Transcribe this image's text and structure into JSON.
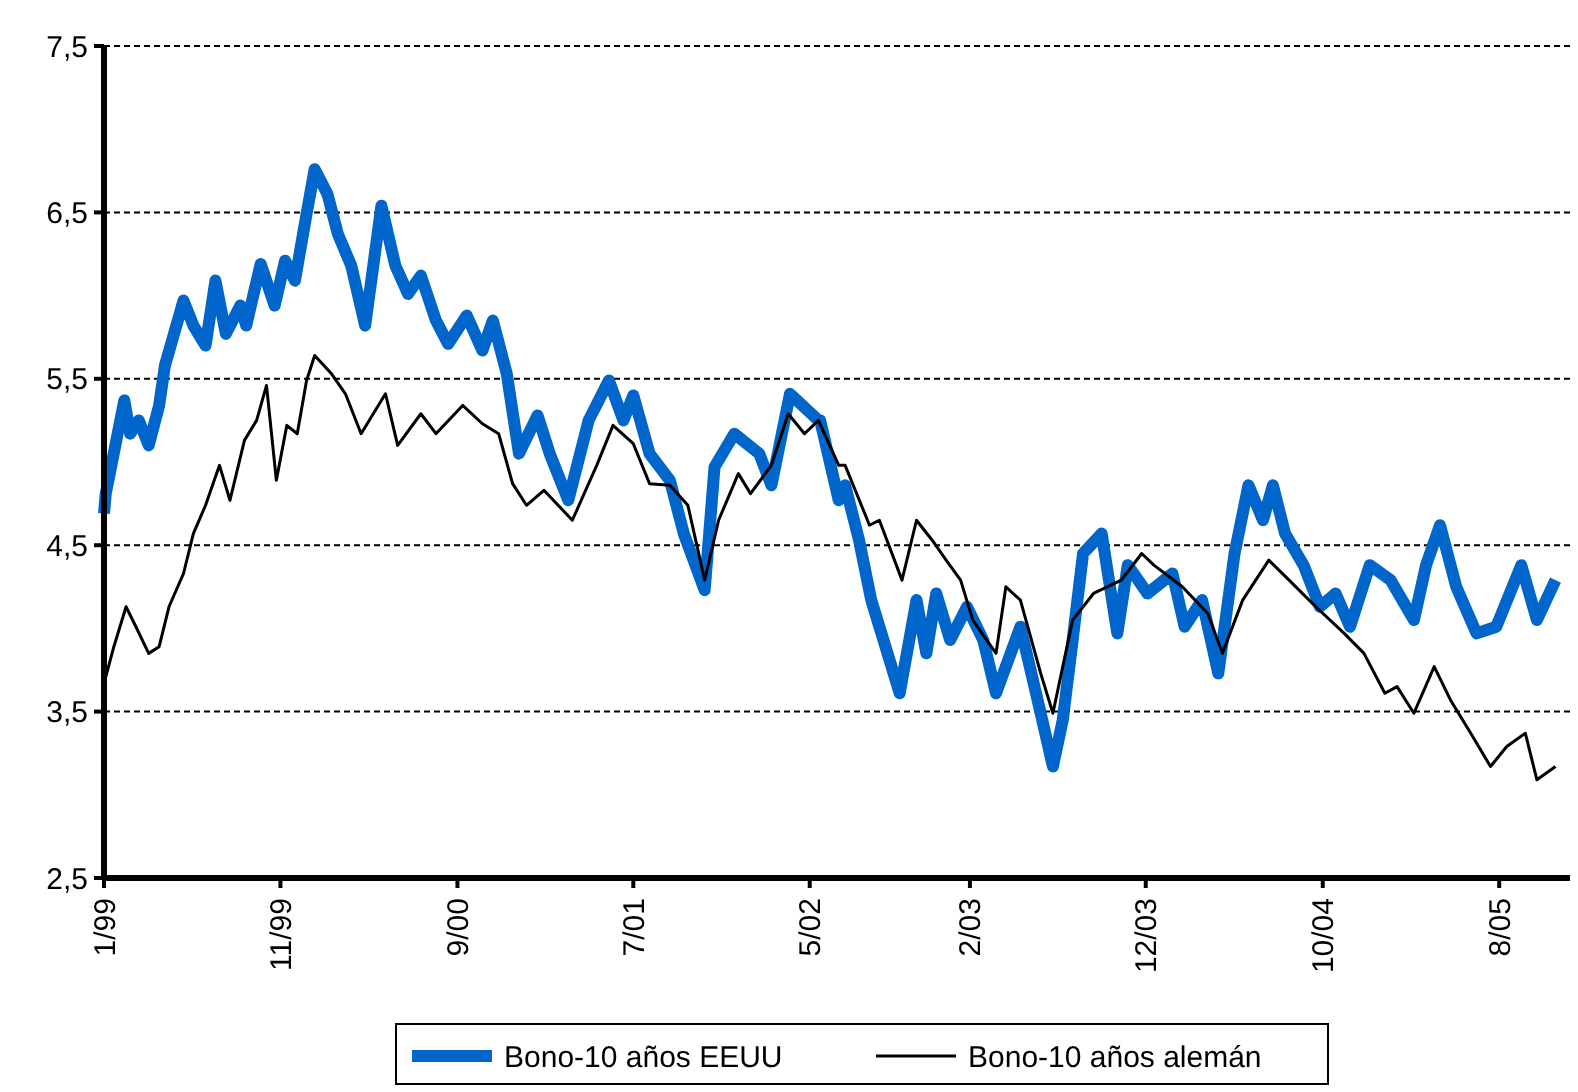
{
  "chart_data": {
    "type": "line",
    "xlim": [
      "1999-01-01",
      "2005-12-01"
    ],
    "ylim": [
      2.5,
      7.5
    ],
    "xticks": [
      {
        "value": "1999-01-01",
        "label": "1/99"
      },
      {
        "value": "1999-11-01",
        "label": "11/99"
      },
      {
        "value": "2000-09-01",
        "label": "9/00"
      },
      {
        "value": "2001-07-01",
        "label": "7/01"
      },
      {
        "value": "2002-05-01",
        "label": "5/02"
      },
      {
        "value": "2003-02-01",
        "label": "2/03"
      },
      {
        "value": "2003-12-01",
        "label": "12/03"
      },
      {
        "value": "2004-10-01",
        "label": "10/04"
      },
      {
        "value": "2005-08-01",
        "label": "8/05"
      }
    ],
    "yticks": [
      {
        "value": 2.5,
        "label": "2,5"
      },
      {
        "value": 3.5,
        "label": "3,5"
      },
      {
        "value": 4.5,
        "label": "4,5"
      },
      {
        "value": 5.5,
        "label": "5,5"
      },
      {
        "value": 6.5,
        "label": "6,5"
      },
      {
        "value": 7.5,
        "label": "7,5"
      }
    ],
    "grid": "y",
    "legend": "bottom",
    "series": [
      {
        "name": "Bono-10 años EEUU",
        "color": "#0066cc",
        "x": [
          "1999-01-01",
          "1999-01-04",
          "1999-02-05",
          "1999-02-15",
          "1999-03-02",
          "1999-03-19",
          "1999-04-06",
          "1999-04-16",
          "1999-05-18",
          "1999-06-04",
          "1999-06-25",
          "1999-07-12",
          "1999-07-30",
          "1999-08-24",
          "1999-09-03",
          "1999-09-28",
          "1999-10-22",
          "1999-11-09",
          "1999-11-26",
          "1999-12-16",
          "1999-12-30",
          "2000-01-21",
          "2000-02-08",
          "2000-03-02",
          "2000-03-26",
          "2000-04-23",
          "2000-05-17",
          "2000-06-08",
          "2000-06-30",
          "2000-07-26",
          "2000-08-16",
          "2000-09-17",
          "2000-10-14",
          "2000-11-01",
          "2000-11-25",
          "2000-12-16",
          "2001-01-17",
          "2001-02-07",
          "2001-03-11",
          "2001-04-15",
          "2001-05-20",
          "2001-06-14",
          "2001-07-01",
          "2001-07-29",
          "2001-09-02",
          "2001-09-26",
          "2001-11-01",
          "2001-11-18",
          "2001-12-22",
          "2002-02-03",
          "2002-02-24",
          "2002-03-28",
          "2002-05-16",
          "2002-05-19",
          "2002-06-20",
          "2002-07-01",
          "2002-07-25",
          "2002-08-15",
          "2002-10-03",
          "2002-11-01",
          "2002-11-18",
          "2002-12-05",
          "2002-12-29",
          "2003-01-27",
          "2003-02-24",
          "2003-03-18",
          "2003-04-29",
          "2003-06-03",
          "2003-06-24",
          "2003-07-11",
          "2003-07-28",
          "2003-08-15",
          "2003-09-16",
          "2003-10-13",
          "2003-10-31",
          "2003-12-04",
          "2004-01-16",
          "2004-02-06",
          "2004-03-07",
          "2004-04-04",
          "2004-05-02",
          "2004-05-26",
          "2004-06-20",
          "2004-07-07",
          "2004-07-28",
          "2004-08-29",
          "2004-09-26",
          "2004-10-23",
          "2004-11-17",
          "2004-12-21",
          "2005-01-26",
          "2005-03-07",
          "2005-03-28",
          "2005-04-21",
          "2005-05-19",
          "2005-06-23",
          "2005-07-27",
          "2005-09-08",
          "2005-10-05",
          "2005-11-06"
        ],
        "values": [
          4.69,
          4.81,
          5.37,
          5.17,
          5.25,
          5.1,
          5.34,
          5.58,
          5.97,
          5.82,
          5.7,
          6.09,
          5.77,
          5.94,
          5.82,
          6.19,
          5.94,
          6.21,
          6.09,
          6.49,
          6.76,
          6.61,
          6.37,
          6.18,
          5.82,
          6.54,
          6.18,
          6.01,
          6.12,
          5.85,
          5.71,
          5.88,
          5.67,
          5.85,
          5.53,
          5.05,
          5.28,
          5.05,
          4.77,
          5.25,
          5.49,
          5.25,
          5.4,
          5.05,
          4.89,
          4.57,
          4.23,
          4.97,
          5.17,
          5.05,
          4.86,
          5.41,
          5.25,
          5.25,
          4.77,
          4.86,
          4.53,
          4.17,
          3.61,
          4.17,
          3.85,
          4.21,
          3.93,
          4.13,
          3.93,
          3.61,
          4.01,
          3.49,
          3.17,
          3.45,
          3.93,
          4.45,
          4.57,
          3.97,
          4.38,
          4.21,
          4.33,
          4.01,
          4.17,
          3.73,
          4.45,
          4.86,
          4.65,
          4.86,
          4.57,
          4.38,
          4.13,
          4.21,
          4.01,
          4.38,
          4.29,
          4.05,
          4.38,
          4.62,
          4.25,
          3.97,
          4.01,
          4.38,
          4.05,
          4.29
        ]
      },
      {
        "name": "Bono-10 años alemán",
        "color": "#000000",
        "x": [
          "1999-01-01",
          "1999-01-18",
          "1999-02-08",
          "1999-02-25",
          "1999-03-19",
          "1999-04-06",
          "1999-04-23",
          "1999-05-18",
          "1999-06-04",
          "1999-06-25",
          "1999-07-19",
          "1999-08-06",
          "1999-08-31",
          "1999-09-21",
          "1999-10-08",
          "1999-10-25",
          "1999-11-12",
          "1999-11-30",
          "1999-12-16",
          "1999-12-30",
          "2000-01-28",
          "2000-02-21",
          "2000-03-19",
          "2000-04-30",
          "2000-05-21",
          "2000-06-30",
          "2000-07-26",
          "2000-09-10",
          "2000-10-14",
          "2000-11-11",
          "2000-12-05",
          "2000-12-29",
          "2001-01-28",
          "2001-03-18",
          "2001-04-29",
          "2001-05-27",
          "2001-07-01",
          "2001-07-29",
          "2001-09-02",
          "2001-10-03",
          "2001-11-01",
          "2001-11-25",
          "2001-12-29",
          "2002-01-19",
          "2002-02-24",
          "2002-03-25",
          "2002-04-22",
          "2002-05-16",
          "2002-06-20",
          "2002-07-01",
          "2002-08-12",
          "2002-08-29",
          "2002-10-07",
          "2002-11-01",
          "2002-11-28",
          "2002-12-22",
          "2003-01-16",
          "2003-02-06",
          "2003-03-18",
          "2003-04-04",
          "2003-04-29",
          "2003-06-03",
          "2003-06-24",
          "2003-07-11",
          "2003-07-28",
          "2003-09-02",
          "2003-10-20",
          "2003-11-24",
          "2003-12-15",
          "2004-02-02",
          "2004-03-17",
          "2004-04-11",
          "2004-05-16",
          "2004-06-30",
          "2004-08-04",
          "2004-09-19",
          "2004-11-07",
          "2004-12-11",
          "2005-01-16",
          "2005-02-06",
          "2005-03-07",
          "2005-04-11",
          "2005-05-09",
          "2005-06-13",
          "2005-07-17",
          "2005-08-14",
          "2005-09-15",
          "2005-10-05",
          "2005-11-06"
        ],
        "values": [
          3.67,
          3.89,
          4.13,
          4.01,
          3.85,
          3.89,
          4.13,
          4.33,
          4.57,
          4.74,
          4.98,
          4.77,
          5.13,
          5.25,
          5.46,
          4.89,
          5.22,
          5.17,
          5.49,
          5.64,
          5.53,
          5.41,
          5.17,
          5.41,
          5.1,
          5.29,
          5.17,
          5.34,
          5.23,
          5.17,
          4.87,
          4.74,
          4.83,
          4.65,
          4.98,
          5.22,
          5.11,
          4.87,
          4.86,
          4.74,
          4.29,
          4.65,
          4.93,
          4.81,
          4.98,
          5.29,
          5.17,
          5.25,
          4.98,
          4.98,
          4.62,
          4.65,
          4.29,
          4.65,
          4.53,
          4.41,
          4.29,
          4.05,
          3.85,
          4.25,
          4.17,
          3.73,
          3.49,
          3.77,
          4.05,
          4.21,
          4.29,
          4.45,
          4.38,
          4.25,
          4.09,
          3.85,
          4.17,
          4.41,
          4.29,
          4.13,
          3.97,
          3.85,
          3.61,
          3.65,
          3.49,
          3.77,
          3.57,
          3.37,
          3.17,
          3.29,
          3.37,
          3.09,
          3.17
        ]
      }
    ]
  }
}
